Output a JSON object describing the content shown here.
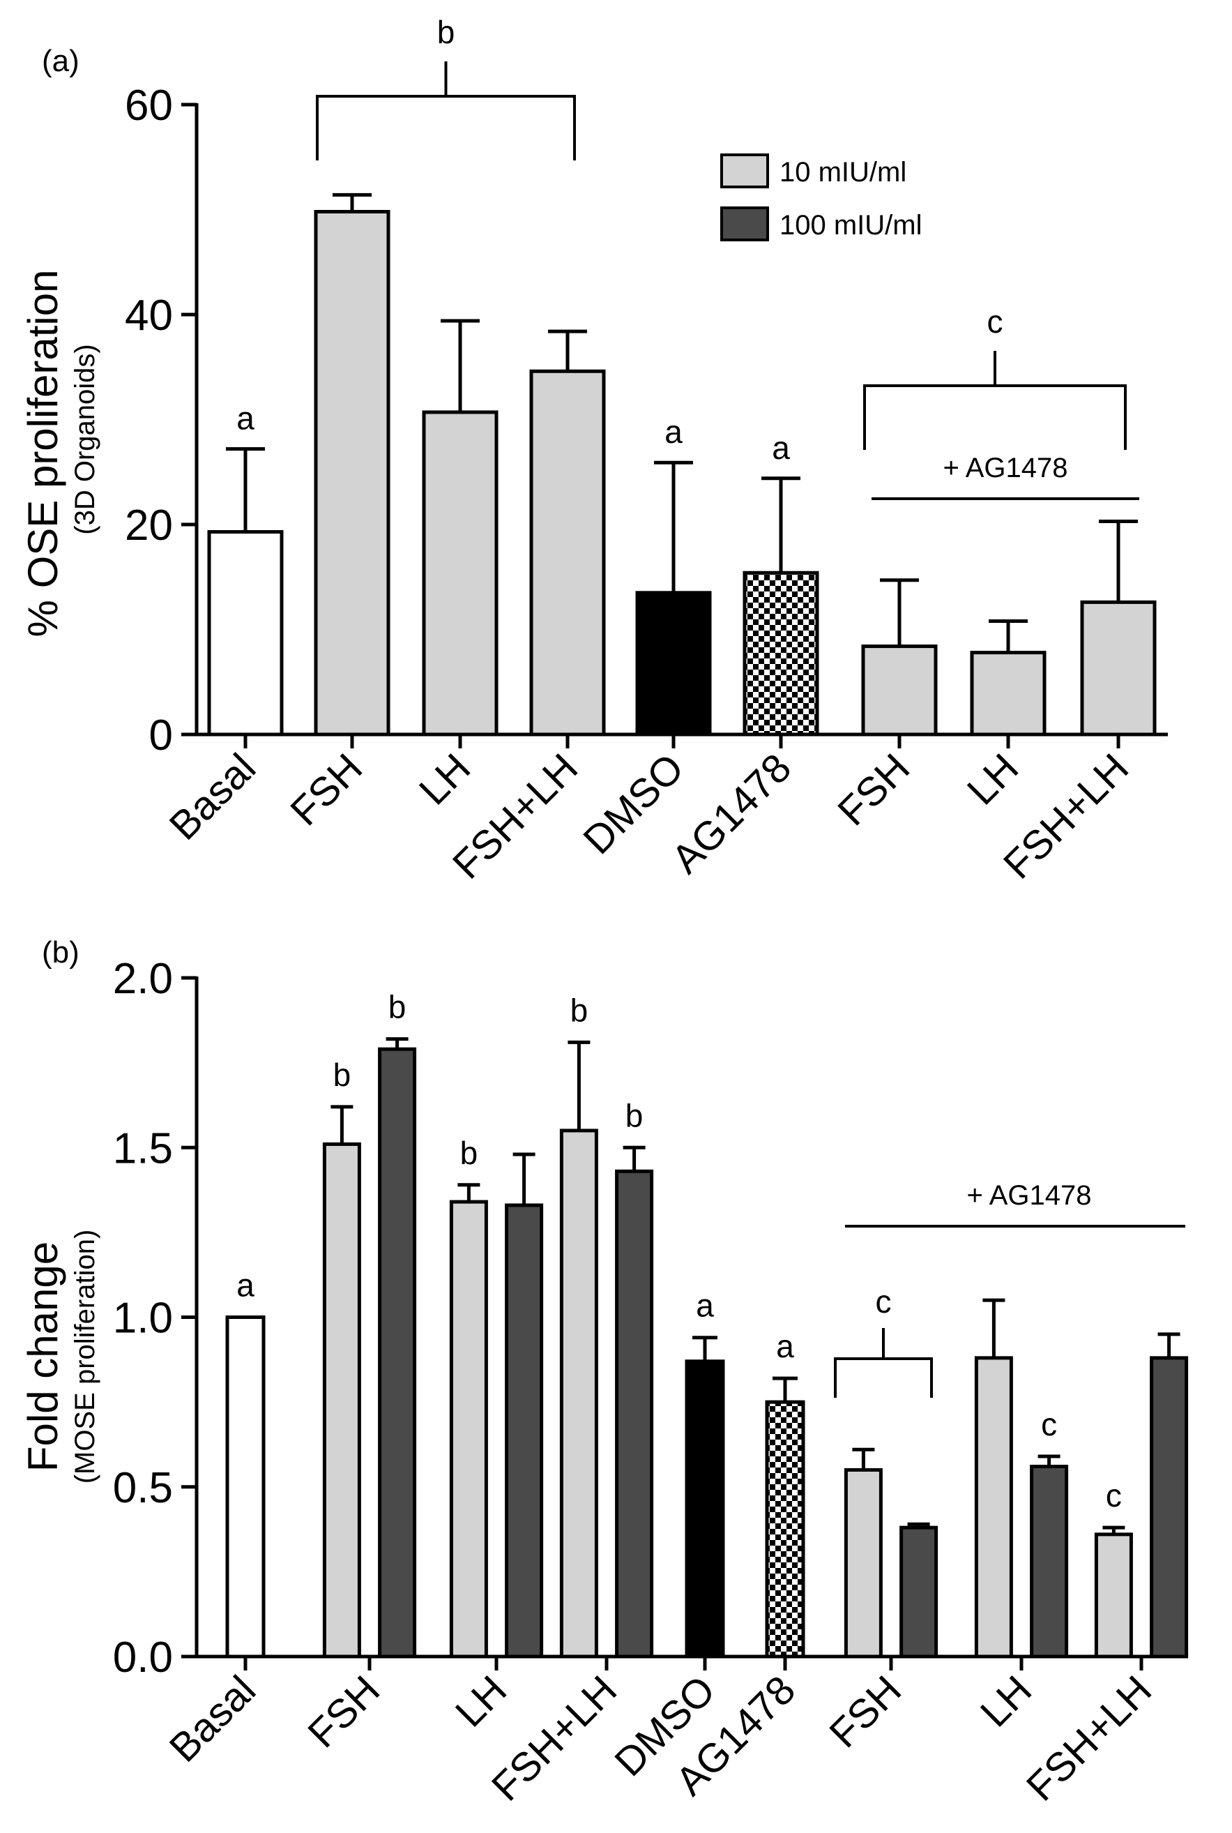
{
  "chart_data": [
    {
      "panel": "(a)",
      "type": "bar",
      "title": "",
      "ylabel": "% OSE proliferation",
      "ylabel_sub": "(3D Organoids)",
      "xlabel": "",
      "ylim": [
        0,
        60
      ],
      "yticks": [
        "0",
        "20",
        "40",
        "60"
      ],
      "categories": [
        "Basal",
        "FSH",
        "LH",
        "FSH+LH",
        "DMSO",
        "AG1478",
        "FSH",
        "LH",
        "FSH+LH"
      ],
      "values": [
        19.3,
        49.8,
        30.7,
        34.6,
        13.5,
        15.4,
        8.4,
        7.8,
        12.6
      ],
      "errors": [
        7.9,
        1.6,
        8.7,
        3.8,
        12.4,
        9.0,
        6.3,
        3.0,
        7.7
      ],
      "fills": [
        "white",
        "light",
        "light",
        "light",
        "black",
        "checker",
        "light",
        "light",
        "light"
      ],
      "sig_letters": [
        {
          "bar": 0,
          "text": "a"
        },
        {
          "bar": 4,
          "text": "a"
        },
        {
          "bar": 5,
          "text": "a"
        }
      ],
      "brackets": [
        {
          "from": 1,
          "to": 3,
          "text": "b"
        },
        {
          "from": 6,
          "to": 8,
          "text": "c"
        }
      ],
      "group_note": {
        "from": 6,
        "to": 8,
        "text": "+ AG1478"
      },
      "legend": [
        {
          "label": "10 mIU/ml",
          "color": "#d3d3d3"
        },
        {
          "label": "100 mIU/ml",
          "color": "#4a4a4a"
        }
      ]
    },
    {
      "panel": "(b)",
      "type": "bar",
      "title": "",
      "ylabel": "Fold change",
      "ylabel_sub": "(MOSE proliferation)",
      "xlabel": "",
      "ylim": [
        0,
        2.0
      ],
      "yticks": [
        "0.0",
        "0.5",
        "1.0",
        "1.5",
        "2.0"
      ],
      "categories": [
        "Basal",
        "FSH",
        "LH",
        "FSH+LH",
        "DMSO",
        "AG1478",
        "FSH",
        "LH",
        "FSH+LH"
      ],
      "series": [
        {
          "name": "10 mIU/ml",
          "values": [
            null,
            1.51,
            1.34,
            1.55,
            null,
            null,
            0.55,
            0.88,
            0.36
          ],
          "errors": [
            null,
            0.11,
            0.05,
            0.26,
            null,
            null,
            0.06,
            0.17,
            0.02
          ]
        },
        {
          "name": "100 mIU/ml",
          "values": [
            null,
            1.79,
            1.33,
            1.43,
            null,
            null,
            0.38,
            0.56,
            0.88
          ],
          "errors": [
            null,
            0.03,
            0.15,
            0.07,
            null,
            null,
            0.01,
            0.03,
            0.07
          ]
        }
      ],
      "single_values": [
        {
          "category": 0,
          "value": 1.0,
          "error": 0,
          "fill": "white"
        },
        {
          "category": 4,
          "value": 0.87,
          "error": 0.07,
          "fill": "black"
        },
        {
          "category": 5,
          "value": 0.75,
          "error": 0.07,
          "fill": "checker"
        }
      ],
      "sig_letters": [
        {
          "category": 0,
          "series": -1,
          "text": "a"
        },
        {
          "category": 1,
          "series": 0,
          "text": "b"
        },
        {
          "category": 1,
          "series": 1,
          "text": "b"
        },
        {
          "category": 2,
          "series": 0,
          "text": "b"
        },
        {
          "category": 3,
          "series": 0,
          "text": "b"
        },
        {
          "category": 3,
          "series": 1,
          "text": "b"
        },
        {
          "category": 4,
          "series": -1,
          "text": "a"
        },
        {
          "category": 5,
          "series": -1,
          "text": "a"
        },
        {
          "category": 7,
          "series": 1,
          "text": "c"
        },
        {
          "category": 8,
          "series": 0,
          "text": "c"
        }
      ],
      "brackets": [
        {
          "category": 6,
          "text": "c"
        }
      ],
      "group_note": {
        "from": 6,
        "to": 8,
        "text": "+ AG1478"
      }
    }
  ]
}
